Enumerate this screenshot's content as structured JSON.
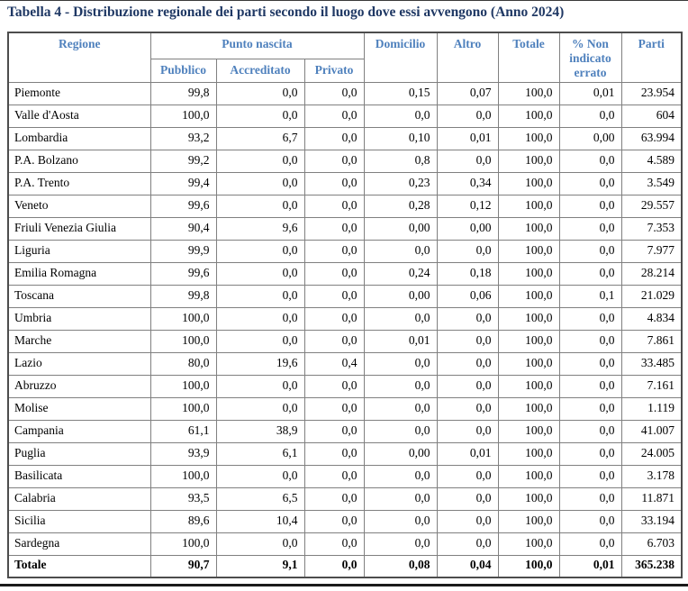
{
  "title": "Tabella 4 - Distribuzione regionale dei parti secondo il luogo dove essi avvengono (Anno 2024)",
  "colors": {
    "title_text": "#1F3864",
    "header_text": "#4F81BD",
    "grid_border": "#808080",
    "body_text": "#000000"
  },
  "table": {
    "headers": {
      "regione": "Regione",
      "punto_nascita": "Punto nascita",
      "pubblico": "Pubblico",
      "accreditato": "Accreditato",
      "privato": "Privato",
      "domicilio": "Domicilio",
      "altro": "Altro",
      "totale": "Totale",
      "non_indicato": "% Non indicato errato",
      "parti": "Parti"
    },
    "column_order": [
      "regione",
      "pubblico",
      "accreditato",
      "privato",
      "domicilio",
      "altro",
      "totale",
      "non_indicato",
      "parti"
    ],
    "rows": [
      {
        "regione": "Piemonte",
        "pubblico": "99,8",
        "accreditato": "0,0",
        "privato": "0,0",
        "domicilio": "0,15",
        "altro": "0,07",
        "totale": "100,0",
        "non_indicato": "0,01",
        "parti": "23.954",
        "is_total": false
      },
      {
        "regione": "Valle d'Aosta",
        "pubblico": "100,0",
        "accreditato": "0,0",
        "privato": "0,0",
        "domicilio": "0,0",
        "altro": "0,0",
        "totale": "100,0",
        "non_indicato": "0,0",
        "parti": "604",
        "is_total": false
      },
      {
        "regione": "Lombardia",
        "pubblico": "93,2",
        "accreditato": "6,7",
        "privato": "0,0",
        "domicilio": "0,10",
        "altro": "0,01",
        "totale": "100,0",
        "non_indicato": "0,00",
        "parti": "63.994",
        "is_total": false
      },
      {
        "regione": "P.A. Bolzano",
        "pubblico": "99,2",
        "accreditato": "0,0",
        "privato": "0,0",
        "domicilio": "0,8",
        "altro": "0,0",
        "totale": "100,0",
        "non_indicato": "0,0",
        "parti": "4.589",
        "is_total": false
      },
      {
        "regione": "P.A. Trento",
        "pubblico": "99,4",
        "accreditato": "0,0",
        "privato": "0,0",
        "domicilio": "0,23",
        "altro": "0,34",
        "totale": "100,0",
        "non_indicato": "0,0",
        "parti": "3.549",
        "is_total": false
      },
      {
        "regione": "Veneto",
        "pubblico": "99,6",
        "accreditato": "0,0",
        "privato": "0,0",
        "domicilio": "0,28",
        "altro": "0,12",
        "totale": "100,0",
        "non_indicato": "0,0",
        "parti": "29.557",
        "is_total": false
      },
      {
        "regione": "Friuli Venezia Giulia",
        "pubblico": "90,4",
        "accreditato": "9,6",
        "privato": "0,0",
        "domicilio": "0,00",
        "altro": "0,00",
        "totale": "100,0",
        "non_indicato": "0,0",
        "parti": "7.353",
        "is_total": false
      },
      {
        "regione": "Liguria",
        "pubblico": "99,9",
        "accreditato": "0,0",
        "privato": "0,0",
        "domicilio": "0,0",
        "altro": "0,0",
        "totale": "100,0",
        "non_indicato": "0,0",
        "parti": "7.977",
        "is_total": false
      },
      {
        "regione": "Emilia Romagna",
        "pubblico": "99,6",
        "accreditato": "0,0",
        "privato": "0,0",
        "domicilio": "0,24",
        "altro": "0,18",
        "totale": "100,0",
        "non_indicato": "0,0",
        "parti": "28.214",
        "is_total": false
      },
      {
        "regione": "Toscana",
        "pubblico": "99,8",
        "accreditato": "0,0",
        "privato": "0,0",
        "domicilio": "0,00",
        "altro": "0,06",
        "totale": "100,0",
        "non_indicato": "0,1",
        "parti": "21.029",
        "is_total": false
      },
      {
        "regione": "Umbria",
        "pubblico": "100,0",
        "accreditato": "0,0",
        "privato": "0,0",
        "domicilio": "0,0",
        "altro": "0,0",
        "totale": "100,0",
        "non_indicato": "0,0",
        "parti": "4.834",
        "is_total": false
      },
      {
        "regione": "Marche",
        "pubblico": "100,0",
        "accreditato": "0,0",
        "privato": "0,0",
        "domicilio": "0,01",
        "altro": "0,0",
        "totale": "100,0",
        "non_indicato": "0,0",
        "parti": "7.861",
        "is_total": false
      },
      {
        "regione": "Lazio",
        "pubblico": "80,0",
        "accreditato": "19,6",
        "privato": "0,4",
        "domicilio": "0,0",
        "altro": "0,0",
        "totale": "100,0",
        "non_indicato": "0,0",
        "parti": "33.485",
        "is_total": false
      },
      {
        "regione": "Abruzzo",
        "pubblico": "100,0",
        "accreditato": "0,0",
        "privato": "0,0",
        "domicilio": "0,0",
        "altro": "0,0",
        "totale": "100,0",
        "non_indicato": "0,0",
        "parti": "7.161",
        "is_total": false
      },
      {
        "regione": "Molise",
        "pubblico": "100,0",
        "accreditato": "0,0",
        "privato": "0,0",
        "domicilio": "0,0",
        "altro": "0,0",
        "totale": "100,0",
        "non_indicato": "0,0",
        "parti": "1.119",
        "is_total": false
      },
      {
        "regione": "Campania",
        "pubblico": "61,1",
        "accreditato": "38,9",
        "privato": "0,0",
        "domicilio": "0,0",
        "altro": "0,0",
        "totale": "100,0",
        "non_indicato": "0,0",
        "parti": "41.007",
        "is_total": false
      },
      {
        "regione": "Puglia",
        "pubblico": "93,9",
        "accreditato": "6,1",
        "privato": "0,0",
        "domicilio": "0,00",
        "altro": "0,01",
        "totale": "100,0",
        "non_indicato": "0,0",
        "parti": "24.005",
        "is_total": false
      },
      {
        "regione": "Basilicata",
        "pubblico": "100,0",
        "accreditato": "0,0",
        "privato": "0,0",
        "domicilio": "0,0",
        "altro": "0,0",
        "totale": "100,0",
        "non_indicato": "0,0",
        "parti": "3.178",
        "is_total": false
      },
      {
        "regione": "Calabria",
        "pubblico": "93,5",
        "accreditato": "6,5",
        "privato": "0,0",
        "domicilio": "0,0",
        "altro": "0,0",
        "totale": "100,0",
        "non_indicato": "0,0",
        "parti": "11.871",
        "is_total": false
      },
      {
        "regione": "Sicilia",
        "pubblico": "89,6",
        "accreditato": "10,4",
        "privato": "0,0",
        "domicilio": "0,0",
        "altro": "0,0",
        "totale": "100,0",
        "non_indicato": "0,0",
        "parti": "33.194",
        "is_total": false
      },
      {
        "regione": "Sardegna",
        "pubblico": "100,0",
        "accreditato": "0,0",
        "privato": "0,0",
        "domicilio": "0,0",
        "altro": "0,0",
        "totale": "100,0",
        "non_indicato": "0,0",
        "parti": "6.703",
        "is_total": false
      },
      {
        "regione": "Totale",
        "pubblico": "90,7",
        "accreditato": "9,1",
        "privato": "0,0",
        "domicilio": "0,08",
        "altro": "0,04",
        "totale": "100,0",
        "non_indicato": "0,01",
        "parti": "365.238",
        "is_total": true
      }
    ]
  }
}
